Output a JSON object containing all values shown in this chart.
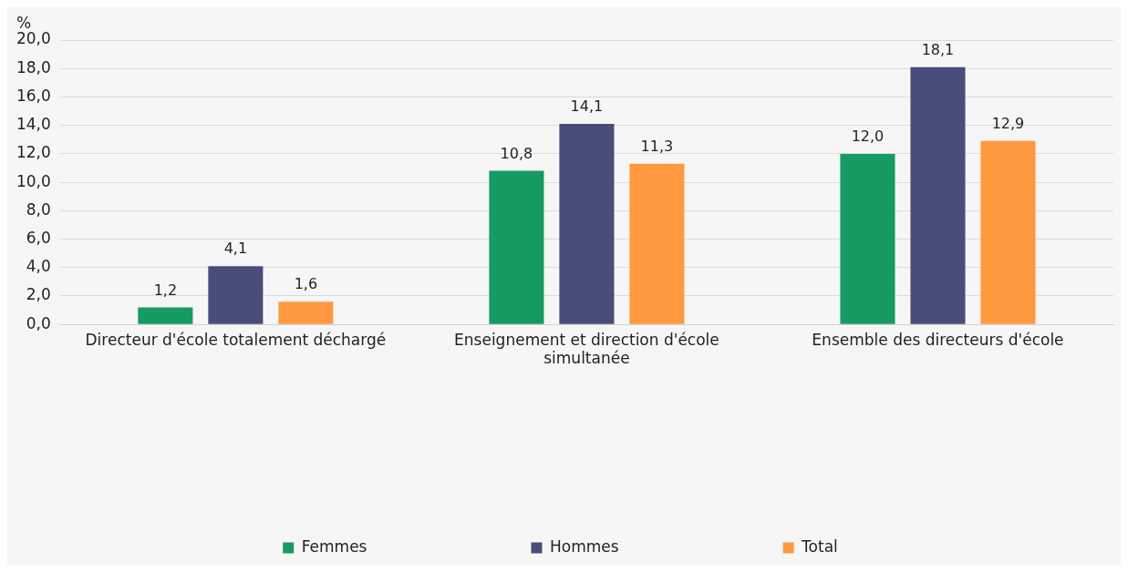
{
  "chart_data": {
    "type": "bar",
    "ylabel": "%",
    "categories": [
      "Directeur d'école totalement déchargé",
      "Enseignement et direction d'école simultanée",
      "Ensemble des directeurs d'école"
    ],
    "series": [
      {
        "name": "Femmes",
        "color": "#169b62",
        "values": [
          1.2,
          10.8,
          12.0
        ],
        "value_labels": [
          "1,2",
          "10,8",
          "12,0"
        ]
      },
      {
        "name": "Hommes",
        "color": "#484d7a",
        "values": [
          4.1,
          14.1,
          18.1
        ],
        "value_labels": [
          "4,1",
          "14,1",
          "18,1"
        ]
      },
      {
        "name": "Total",
        "color": "#ff9940",
        "values": [
          1.6,
          11.3,
          12.9
        ],
        "value_labels": [
          "1,6",
          "11,3",
          "12,9"
        ]
      }
    ],
    "ylim": [
      0,
      20
    ],
    "yticks": [
      {
        "value": 0,
        "label": "0,0"
      },
      {
        "value": 2,
        "label": "2,0"
      },
      {
        "value": 4,
        "label": "4,0"
      },
      {
        "value": 6,
        "label": "6,0"
      },
      {
        "value": 8,
        "label": "8,0"
      },
      {
        "value": 10,
        "label": "10,0"
      },
      {
        "value": 12,
        "label": "12,0"
      },
      {
        "value": 14,
        "label": "14,0"
      },
      {
        "value": 16,
        "label": "16,0"
      },
      {
        "value": 18,
        "label": "18,0"
      },
      {
        "value": 20,
        "label": "20,0"
      }
    ],
    "grid": "y",
    "legend": "bottom"
  }
}
